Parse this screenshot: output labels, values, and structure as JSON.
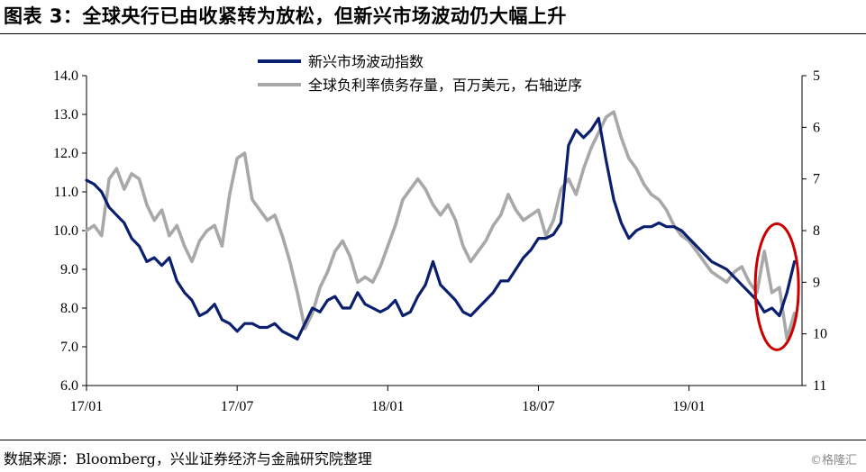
{
  "title": "图表 3：全球央行已由收紧转为放松，但新兴市场波动仍大幅上升",
  "source": "数据来源：Bloomberg，兴业证券经济与金融研究院整理",
  "watermark": "©格隆汇",
  "chart_data": {
    "type": "line",
    "x_tick_labels": [
      "17/01",
      "17/07",
      "18/01",
      "18/07",
      "19/01"
    ],
    "x_tick_positions_months": [
      0,
      6,
      12,
      18,
      24
    ],
    "x_range_months": [
      0,
      28.5
    ],
    "y_left": {
      "ylim": [
        6.0,
        14.0
      ],
      "ticks": [
        "6.0",
        "7.0",
        "8.0",
        "9.0",
        "10.0",
        "11.0",
        "12.0",
        "13.0",
        "14.0"
      ]
    },
    "y_right": {
      "ylim": [
        5,
        11
      ],
      "inverted": true,
      "ticks": [
        "5",
        "6",
        "7",
        "8",
        "9",
        "10",
        "11"
      ]
    },
    "series": [
      {
        "name": "新兴市场波动指数",
        "axis": "left",
        "color": "#0a1f6e",
        "x": [
          0,
          0.3,
          0.6,
          0.9,
          1.2,
          1.5,
          1.8,
          2.1,
          2.4,
          2.7,
          3.0,
          3.3,
          3.6,
          3.9,
          4.2,
          4.5,
          4.8,
          5.1,
          5.4,
          5.7,
          6.0,
          6.3,
          6.6,
          6.9,
          7.2,
          7.5,
          7.8,
          8.1,
          8.4,
          8.7,
          9.0,
          9.3,
          9.6,
          9.9,
          10.2,
          10.5,
          10.8,
          11.1,
          11.4,
          11.7,
          12.0,
          12.3,
          12.6,
          12.9,
          13.2,
          13.5,
          13.8,
          14.1,
          14.4,
          14.7,
          15.0,
          15.3,
          15.6,
          15.9,
          16.2,
          16.5,
          16.8,
          17.1,
          17.4,
          17.7,
          18.0,
          18.3,
          18.6,
          18.9,
          19.2,
          19.5,
          19.8,
          20.1,
          20.4,
          20.7,
          21.0,
          21.3,
          21.6,
          21.9,
          22.2,
          22.5,
          22.8,
          23.1,
          23.4,
          23.7,
          24.0,
          24.3,
          24.6,
          24.9,
          25.2,
          25.5,
          25.8,
          26.1,
          26.4,
          26.7,
          27.0,
          27.3,
          27.6,
          27.9,
          28.2
        ],
        "y": [
          11.3,
          11.2,
          11.0,
          10.6,
          10.4,
          10.2,
          9.8,
          9.6,
          9.2,
          9.3,
          9.1,
          9.3,
          8.7,
          8.4,
          8.2,
          7.8,
          7.9,
          8.1,
          7.7,
          7.6,
          7.4,
          7.6,
          7.6,
          7.5,
          7.5,
          7.6,
          7.4,
          7.3,
          7.2,
          7.6,
          8.0,
          7.9,
          8.2,
          8.3,
          8.0,
          8.0,
          8.4,
          8.1,
          8.0,
          7.9,
          8.0,
          8.2,
          7.8,
          7.9,
          8.3,
          8.6,
          9.2,
          8.6,
          8.4,
          8.2,
          7.9,
          7.8,
          8.0,
          8.2,
          8.4,
          8.7,
          8.7,
          9.0,
          9.3,
          9.5,
          9.8,
          9.8,
          9.9,
          10.2,
          12.2,
          12.6,
          12.4,
          12.6,
          12.9,
          11.8,
          10.8,
          10.2,
          9.8,
          10.0,
          10.1,
          10.1,
          10.2,
          10.1,
          10.1,
          10.0,
          9.8,
          9.6,
          9.4,
          9.2,
          9.1,
          9.0,
          8.8,
          8.6,
          8.4,
          8.2,
          7.9,
          8.0,
          7.8,
          8.4,
          9.2
        ]
      },
      {
        "name": "全球负利率债务存量，百万美元，右轴逆序",
        "axis": "right",
        "color": "#a8a8a8",
        "x": [
          0,
          0.3,
          0.6,
          0.9,
          1.2,
          1.5,
          1.8,
          2.1,
          2.4,
          2.7,
          3.0,
          3.3,
          3.6,
          3.9,
          4.2,
          4.5,
          4.8,
          5.1,
          5.4,
          5.7,
          6.0,
          6.3,
          6.6,
          6.9,
          7.2,
          7.5,
          7.8,
          8.1,
          8.4,
          8.7,
          9.0,
          9.3,
          9.6,
          9.9,
          10.2,
          10.5,
          10.8,
          11.1,
          11.4,
          11.7,
          12.0,
          12.3,
          12.6,
          12.9,
          13.2,
          13.5,
          13.8,
          14.1,
          14.4,
          14.7,
          15.0,
          15.3,
          15.6,
          15.9,
          16.2,
          16.5,
          16.8,
          17.1,
          17.4,
          17.7,
          18.0,
          18.3,
          18.6,
          18.9,
          19.2,
          19.5,
          19.8,
          20.1,
          20.4,
          20.7,
          21.0,
          21.3,
          21.6,
          21.9,
          22.2,
          22.5,
          22.8,
          23.1,
          23.4,
          23.7,
          24.0,
          24.3,
          24.6,
          24.9,
          25.2,
          25.5,
          25.8,
          26.1,
          26.4,
          26.7,
          27.0,
          27.3,
          27.6,
          27.9,
          28.2
        ],
        "y": [
          8.0,
          7.9,
          8.1,
          7.0,
          6.8,
          7.2,
          6.9,
          7.0,
          7.5,
          7.8,
          7.6,
          8.1,
          7.9,
          8.3,
          8.6,
          8.2,
          8.0,
          7.9,
          8.3,
          7.3,
          6.6,
          6.5,
          7.4,
          7.6,
          7.8,
          7.7,
          8.1,
          8.6,
          9.2,
          9.9,
          9.6,
          9.1,
          8.8,
          8.4,
          8.2,
          8.5,
          9.0,
          8.9,
          9.0,
          8.7,
          8.3,
          7.9,
          7.4,
          7.2,
          7.0,
          7.2,
          7.5,
          7.7,
          7.5,
          7.8,
          8.3,
          8.6,
          8.4,
          8.2,
          7.9,
          7.7,
          7.3,
          7.6,
          7.8,
          7.7,
          7.6,
          8.1,
          7.8,
          7.2,
          7.0,
          7.3,
          6.8,
          6.4,
          6.1,
          5.8,
          5.7,
          6.2,
          6.6,
          6.8,
          7.1,
          7.3,
          7.4,
          7.6,
          7.9,
          8.1,
          8.2,
          8.4,
          8.6,
          8.8,
          8.9,
          9.0,
          8.8,
          8.7,
          9.0,
          9.2,
          8.4,
          9.2,
          9.1,
          10.1,
          9.6
        ]
      }
    ],
    "annotation": {
      "type": "ellipse",
      "color": "#cc0000",
      "x_months": 27.5,
      "y_left": 8.55
    }
  }
}
